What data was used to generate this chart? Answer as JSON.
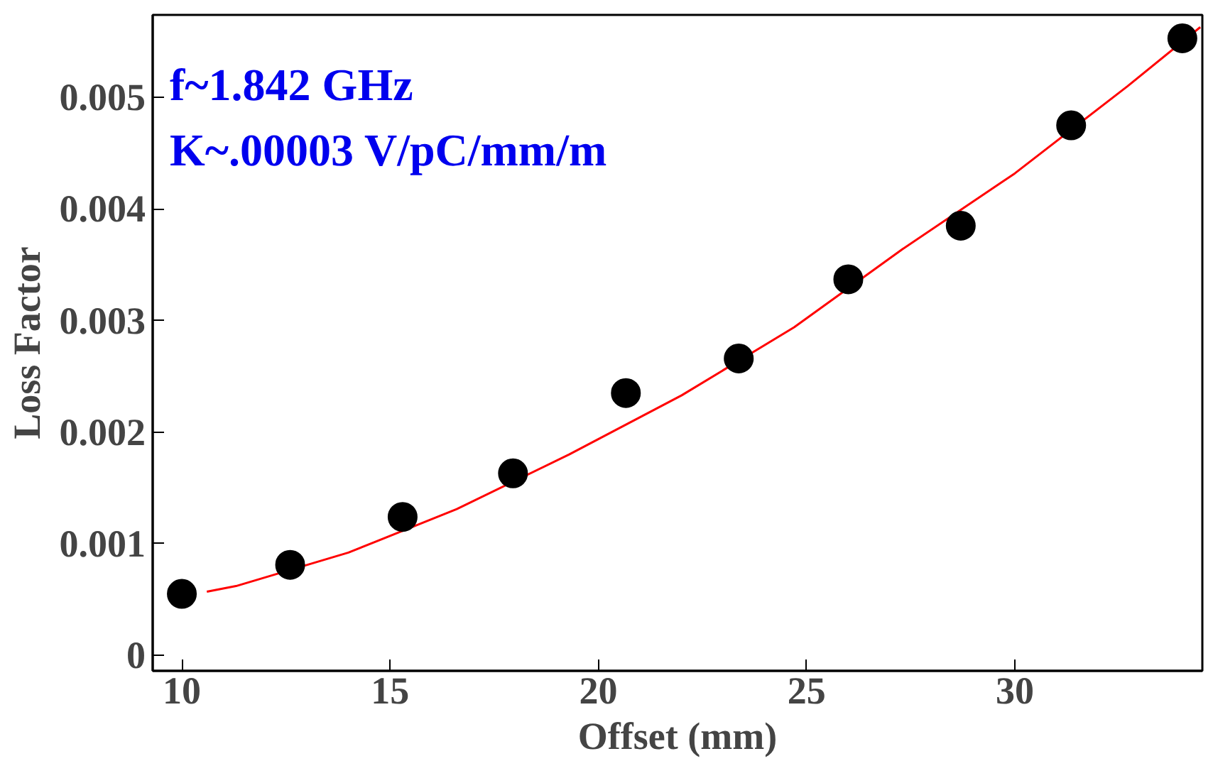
{
  "chart_data": {
    "type": "scatter",
    "xlabel": "Offset (mm)",
    "ylabel": "Loss Factor",
    "annotations": [
      "f~1.842 GHz",
      "K~.00003 V/pC/mm/m"
    ],
    "x": [
      10.0,
      12.6,
      15.3,
      17.95,
      20.66,
      23.37,
      26.0,
      28.7,
      31.35,
      34.02
    ],
    "series": [
      {
        "color": "#000000",
        "marker": "circle",
        "values": [
          0.00055,
          0.00081,
          0.00124,
          0.00163,
          0.00235,
          0.00266,
          0.00337,
          0.00385,
          0.00475,
          0.00553
        ]
      },
      {
        "type": "line",
        "color": "#ff0000",
        "x": [
          10.6,
          11.3,
          14.0,
          16.6,
          19.3,
          22.0,
          24.7,
          27.3,
          30.0,
          32.7,
          34.45
        ],
        "values": [
          0.00057,
          0.00062,
          0.00092,
          0.00131,
          0.0018,
          0.00233,
          0.00294,
          0.00364,
          0.00432,
          0.0051,
          0.00563
        ]
      }
    ],
    "xlim": [
      9.3,
      34.5
    ],
    "ylim": [
      -0.00014,
      0.00574
    ],
    "xticks": [
      10,
      15,
      20,
      25,
      30
    ],
    "yticks": [
      0,
      0.001,
      0.002,
      0.003,
      0.004,
      0.005
    ],
    "grid": false
  }
}
